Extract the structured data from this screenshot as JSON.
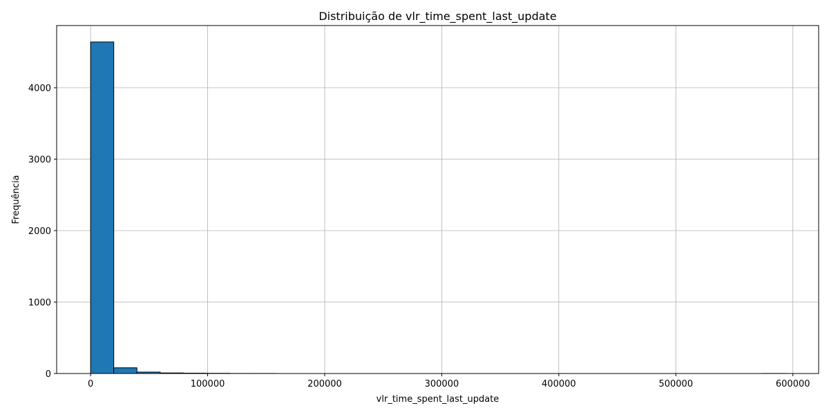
{
  "chart_data": {
    "type": "bar",
    "title": "Distribuição de vlr_time_spent_last_update",
    "xlabel": "vlr_time_spent_last_update",
    "ylabel": "Frequência",
    "xlim": [
      -29000,
      622000
    ],
    "ylim": [
      0,
      4870
    ],
    "grid": true,
    "bar_color": "#1f77b4",
    "edge_color": "#000000",
    "x_ticks": [
      0,
      100000,
      200000,
      300000,
      400000,
      500000,
      600000
    ],
    "x_tick_labels": [
      "0",
      "100000",
      "200000",
      "300000",
      "400000",
      "500000",
      "600000"
    ],
    "y_ticks": [
      0,
      1000,
      2000,
      3000,
      4000
    ],
    "y_tick_labels": [
      "0",
      "1000",
      "2000",
      "3000",
      "4000"
    ],
    "bins": {
      "start": 0,
      "width": 19800,
      "counts": [
        4640,
        80,
        20,
        8,
        5,
        3,
        1,
        1,
        0,
        0,
        0,
        0,
        0,
        0,
        0,
        0,
        0,
        0,
        0,
        0,
        0,
        0,
        0,
        0,
        0,
        0,
        0,
        0,
        0,
        1
      ]
    }
  }
}
